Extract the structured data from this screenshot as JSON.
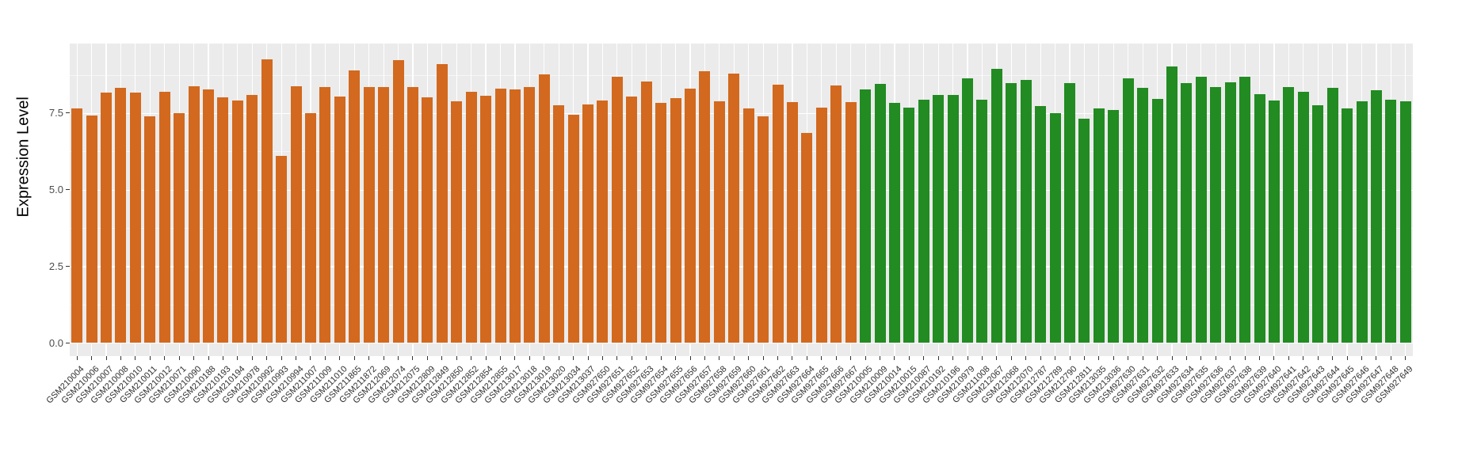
{
  "chart_data": {
    "type": "bar",
    "title": "",
    "xlabel": "",
    "ylabel": "Expression Level",
    "ylim": [
      0,
      9.9
    ],
    "ytick_labels": [
      "0.0",
      "2.5",
      "5.0",
      "7.5"
    ],
    "ytick_values": [
      0,
      2.5,
      5,
      7.5
    ],
    "yminor_values": [
      1.25,
      3.75,
      6.25,
      8.75
    ],
    "grid": "on",
    "legend_position": "none",
    "panel_bg": "#EBEBEB",
    "gridline_color": "#FFFFFF",
    "groups": [
      {
        "name": "group-1-orange",
        "color": "#D2691E"
      },
      {
        "name": "group-2-green",
        "color": "#228B22"
      }
    ],
    "categories": [
      "GSM210004",
      "GSM210006",
      "GSM210007",
      "GSM210008",
      "GSM210010",
      "GSM210011",
      "GSM210012",
      "GSM210071",
      "GSM210090",
      "GSM210188",
      "GSM210193",
      "GSM210194",
      "GSM210978",
      "GSM210992",
      "GSM210993",
      "GSM210994",
      "GSM211007",
      "GSM211009",
      "GSM211010",
      "GSM211865",
      "GSM211872",
      "GSM212069",
      "GSM212074",
      "GSM212075",
      "GSM212809",
      "GSM212849",
      "GSM212850",
      "GSM212852",
      "GSM212854",
      "GSM212855",
      "GSM213017",
      "GSM213018",
      "GSM213019",
      "GSM213020",
      "GSM213034",
      "GSM213037",
      "GSM927650",
      "GSM927651",
      "GSM927652",
      "GSM927653",
      "GSM927654",
      "GSM927655",
      "GSM927656",
      "GSM927657",
      "GSM927658",
      "GSM927659",
      "GSM927660",
      "GSM927661",
      "GSM927662",
      "GSM927663",
      "GSM927664",
      "GSM927665",
      "GSM927666",
      "GSM927667",
      "GSM210005",
      "GSM210009",
      "GSM210014",
      "GSM210015",
      "GSM210087",
      "GSM210192",
      "GSM210196",
      "GSM210979",
      "GSM211008",
      "GSM212067",
      "GSM212068",
      "GSM212070",
      "GSM212787",
      "GSM212789",
      "GSM212790",
      "GSM212811",
      "GSM213035",
      "GSM213036",
      "GSM927630",
      "GSM927631",
      "GSM927632",
      "GSM927633",
      "GSM927634",
      "GSM927635",
      "GSM927636",
      "GSM927637",
      "GSM927638",
      "GSM927639",
      "GSM927640",
      "GSM927641",
      "GSM927642",
      "GSM927643",
      "GSM927644",
      "GSM927645",
      "GSM927646",
      "GSM927647",
      "GSM927648",
      "GSM927649"
    ],
    "values": [
      7.65,
      7.42,
      8.17,
      8.33,
      8.17,
      7.39,
      8.2,
      7.5,
      8.38,
      8.27,
      8.02,
      7.91,
      8.09,
      9.26,
      6.11,
      8.37,
      7.5,
      8.35,
      8.05,
      8.9,
      8.35,
      8.35,
      9.23,
      8.35,
      8.01,
      9.11,
      7.88,
      8.2,
      8.07,
      8.31,
      8.28,
      8.35,
      8.76,
      7.77,
      7.45,
      7.78,
      7.92,
      8.7,
      8.05,
      8.53,
      7.84,
      7.98,
      8.29,
      8.87,
      7.9,
      8.8,
      7.66,
      7.39,
      8.42,
      7.85,
      6.84,
      7.69,
      8.4,
      7.86,
      8.27,
      8.46,
      7.84,
      7.69,
      7.94,
      8.09,
      8.09,
      8.65,
      7.94,
      8.96,
      8.49,
      8.59,
      7.72,
      7.49,
      8.47,
      7.32,
      7.65,
      7.6,
      8.63,
      8.33,
      7.96,
      9.03,
      8.47,
      8.7,
      8.34,
      8.51,
      8.68,
      8.13,
      7.92,
      8.36,
      8.2,
      7.77,
      8.33,
      7.66,
      7.9,
      8.24,
      7.93,
      7.88
    ],
    "bar_group_index": [
      0,
      0,
      0,
      0,
      0,
      0,
      0,
      0,
      0,
      0,
      0,
      0,
      0,
      0,
      0,
      0,
      0,
      0,
      0,
      0,
      0,
      0,
      0,
      0,
      0,
      0,
      0,
      0,
      0,
      0,
      0,
      0,
      0,
      0,
      0,
      0,
      0,
      0,
      0,
      0,
      0,
      0,
      0,
      0,
      0,
      0,
      0,
      0,
      0,
      0,
      0,
      0,
      0,
      0,
      1,
      1,
      1,
      1,
      1,
      1,
      1,
      1,
      1,
      1,
      1,
      1,
      1,
      1,
      1,
      1,
      1,
      1,
      1,
      1,
      1,
      1,
      1,
      1,
      1,
      1,
      1,
      1,
      1,
      1,
      1,
      1,
      1,
      1,
      1,
      1,
      1,
      1
    ]
  }
}
